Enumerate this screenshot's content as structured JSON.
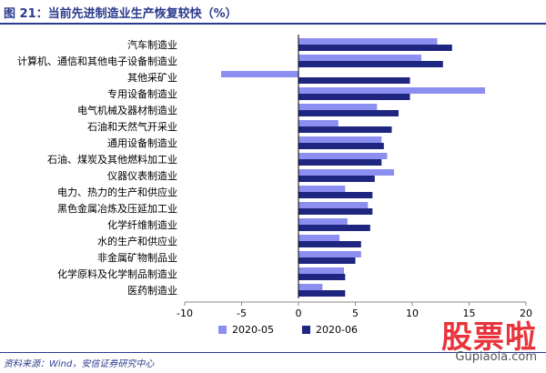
{
  "header": {
    "title": "图 21：当前先进制造业生产恢复较快（%）"
  },
  "colors": {
    "series_2020_05": "#8c8ff0",
    "series_2020_06": "#1f2680",
    "header_blue": "#2a3a8c",
    "axis": "#888888"
  },
  "chart_data": {
    "type": "bar",
    "orientation": "horizontal",
    "title": "当前先进制造业生产恢复较快（%）",
    "xlabel": "",
    "ylabel": "",
    "xlim": [
      -10,
      20
    ],
    "xticks": [
      -10,
      -5,
      0,
      5,
      10,
      15,
      20
    ],
    "grid": false,
    "legend_position": "bottom",
    "categories": [
      "汽车制造业",
      "计算机、通信和其他电子设备制造业",
      "其他采矿业",
      "专用设备制造业",
      "电气机械及器材制造业",
      "石油和天然气开采业",
      "通用设备制造业",
      "石油、煤炭及其他燃料加工业",
      "仪器仪表制造业",
      "电力、热力的生产和供应业",
      "黑色金属冶炼及压延加工业",
      "化学纤维制造业",
      "水的生产和供应业",
      "非金属矿物制品业",
      "化学原料及化学制品制造业",
      "医药制造业"
    ],
    "series": [
      {
        "name": "2020-05",
        "values": [
          12.2,
          10.8,
          -6.8,
          16.4,
          6.9,
          3.5,
          7.3,
          7.8,
          8.4,
          4.1,
          6.1,
          4.3,
          3.6,
          5.5,
          4.0,
          2.1
        ]
      },
      {
        "name": "2020-06",
        "values": [
          13.5,
          12.7,
          9.8,
          9.8,
          8.8,
          8.2,
          7.5,
          7.3,
          6.7,
          6.5,
          6.5,
          6.3,
          5.5,
          5.0,
          4.1,
          4.1
        ]
      }
    ]
  },
  "source": {
    "text": "资料来源：Wind，安信证券研究中心"
  },
  "watermark": {
    "cn": "股票啦",
    "en": "Gupiaola.com"
  }
}
